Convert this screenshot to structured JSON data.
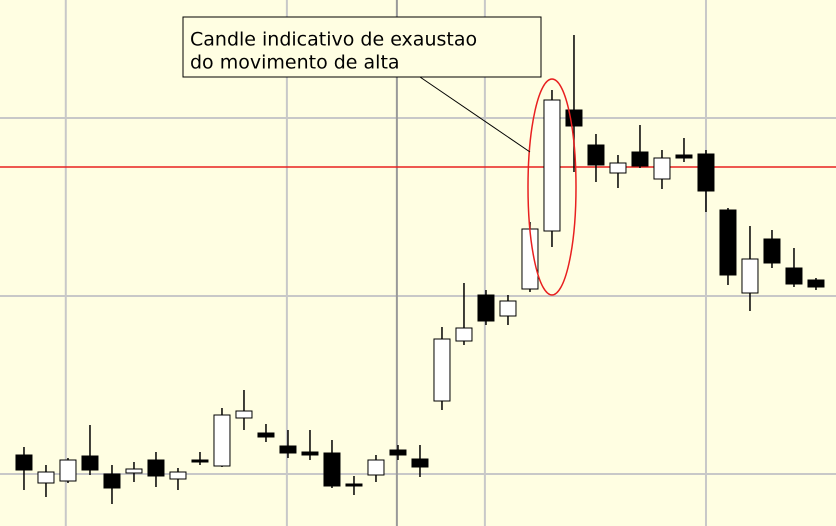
{
  "chart_data": {
    "type": "candlestick",
    "annotation": [
      "Candle indicativo de exaustao",
      "do movimento de alta"
    ],
    "open": [
      71,
      43,
      45,
      70,
      52,
      53,
      66,
      47,
      66,
      60,
      108,
      93,
      80,
      74,
      73,
      42,
      51,
      76,
      67,
      125,
      185,
      231,
      210,
      237,
      295,
      416,
      381,
      353,
      374,
      347,
      371,
      372,
      316,
      233,
      287,
      258,
      246
    ],
    "high": [
      79,
      61,
      68,
      101,
      61,
      64,
      74,
      58,
      74,
      118,
      136,
      102,
      96,
      96,
      86,
      50,
      71,
      81,
      81,
      199,
      243,
      236,
      231,
      304,
      436,
      491,
      392,
      371,
      401,
      376,
      388,
      376,
      318,
      300,
      296,
      278,
      248
    ],
    "low": [
      36,
      29,
      43,
      51,
      22,
      44,
      39,
      36,
      61,
      59,
      96,
      84,
      68,
      66,
      38,
      31,
      44,
      66,
      49,
      116,
      181,
      201,
      201,
      234,
      279,
      354,
      344,
      338,
      358,
      337,
      364,
      314,
      241,
      215,
      258,
      239,
      236
    ],
    "close": [
      56,
      54,
      66,
      56,
      38,
      57,
      50,
      54,
      64,
      111,
      115,
      89,
      73,
      71,
      40,
      40,
      66,
      71,
      59,
      187,
      198,
      205,
      225,
      297,
      426,
      400,
      361,
      363,
      360,
      368,
      368,
      335,
      251,
      267,
      263,
      242,
      239
    ],
    "up_color": "#ffffff",
    "down_color": "#000000",
    "reference_line": 359,
    "reference_color": "#e82020",
    "xlim": [
      -1.09,
      36.91
    ],
    "xticks": [
      1.9,
      11.95,
      16.95,
      20.95,
      31
    ],
    "ylim": [
      0,
      526
    ],
    "yticks": [
      408,
      230,
      52
    ],
    "grid": true
  }
}
